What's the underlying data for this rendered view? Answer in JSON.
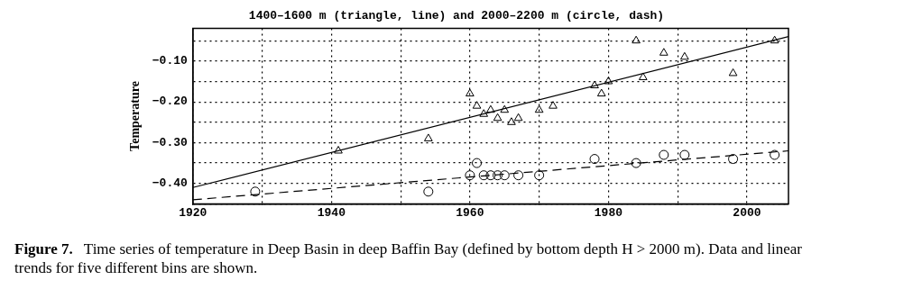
{
  "chart_data": {
    "type": "scatter",
    "title": "1400–1600 m (triangle, line) and 2000–2200 m (circle, dash)",
    "ylabel": "Temperature",
    "xlim": [
      1920,
      2006
    ],
    "xticks": [
      1920,
      {
        "value": 1930,
        "label": null
      },
      1940,
      {
        "value": 1950,
        "label": null
      },
      1960,
      {
        "value": 1970,
        "label": null
      },
      1980,
      {
        "value": 1990,
        "label": null
      },
      2000
    ],
    "ylim": [
      -0.45,
      -0.02
    ],
    "yticks": [
      {
        "value": -0.45,
        "label": null
      },
      {
        "value": -0.4,
        "label": "−0.40"
      },
      {
        "value": -0.35,
        "label": null
      },
      {
        "value": -0.3,
        "label": "−0.30"
      },
      {
        "value": -0.25,
        "label": null
      },
      {
        "value": -0.2,
        "label": "−0.20"
      },
      {
        "value": -0.15,
        "label": null
      },
      {
        "value": -0.1,
        "label": "−0.10"
      },
      {
        "value": -0.05,
        "label": null
      }
    ],
    "grid": true,
    "legend": false,
    "series": [
      {
        "type": "scatter",
        "marker": "triangle",
        "color": "#000000",
        "x": [
          1941,
          1954,
          1960,
          1961,
          1962,
          1963,
          1964,
          1965,
          1966,
          1967,
          1970,
          1972,
          1978,
          1979,
          1980,
          1984,
          1985,
          1988,
          1991,
          1998,
          2004
        ],
        "values": [
          -0.32,
          -0.29,
          -0.18,
          -0.21,
          -0.23,
          -0.22,
          -0.24,
          -0.22,
          -0.25,
          -0.24,
          -0.22,
          -0.21,
          -0.16,
          -0.18,
          -0.15,
          -0.05,
          -0.14,
          -0.08,
          -0.09,
          -0.13,
          -0.05
        ]
      },
      {
        "type": "scatter",
        "marker": "circle",
        "color": "#000000",
        "x": [
          1929,
          1954,
          1960,
          1961,
          1962,
          1963,
          1964,
          1965,
          1967,
          1970,
          1978,
          1984,
          1988,
          1991,
          1998,
          2004
        ],
        "values": [
          -0.42,
          -0.42,
          -0.38,
          -0.35,
          -0.38,
          -0.38,
          -0.38,
          -0.38,
          -0.38,
          -0.38,
          -0.34,
          -0.35,
          -0.33,
          -0.33,
          -0.34,
          -0.33
        ]
      },
      {
        "type": "line",
        "marker": "none",
        "line_style": "solid",
        "color": "#000000",
        "x": [
          1920,
          2006
        ],
        "values": [
          -0.41,
          -0.04
        ]
      },
      {
        "type": "line",
        "marker": "none",
        "line_style": "dashed",
        "color": "#000000",
        "x": [
          1920,
          2006
        ],
        "values": [
          -0.44,
          -0.32
        ]
      }
    ],
    "annotations": [
      "Figure 7.",
      "Time series of temperature in Deep Basin in deep Baffin Bay (defined by bottom depth H > 2000 m). Data and linear trends for five different bins are shown."
    ]
  }
}
